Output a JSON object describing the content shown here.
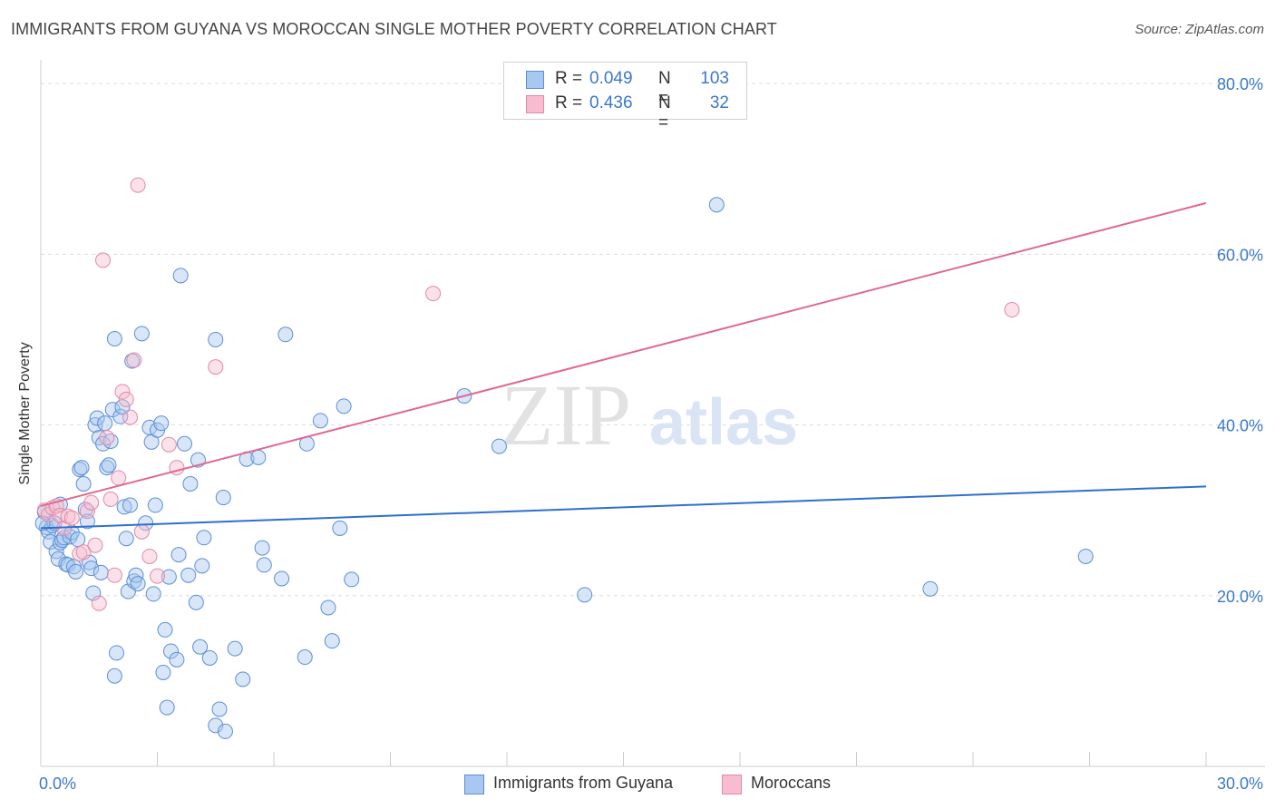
{
  "title": "IMMIGRANTS FROM GUYANA VS MOROCCAN SINGLE MOTHER POVERTY CORRELATION CHART",
  "source": "Source: ZipAtlas.com",
  "watermark": {
    "zip": "ZIP",
    "atlas": "atlas"
  },
  "colors": {
    "blue_fill": "#a8c8f0",
    "blue_stroke": "#5b8fd6",
    "blue_line": "#2f6fcf",
    "pink_fill": "#f7bcd0",
    "pink_stroke": "#e08aa6",
    "pink_line": "#e06890",
    "axis_text": "#3a78c9",
    "grid": "#dcdcdc"
  },
  "legend_top": {
    "rows": [
      {
        "r_label": "R =",
        "r_value": "0.049",
        "n_label": "N =",
        "n_value": "103",
        "color": "blue"
      },
      {
        "r_label": "R =",
        "r_value": "0.436",
        "n_label": "N =",
        "n_value": "32",
        "color": "pink"
      }
    ]
  },
  "legend_bottom": {
    "items": [
      {
        "label": "Immigrants from Guyana",
        "color": "blue"
      },
      {
        "label": "Moroccans",
        "color": "pink"
      }
    ]
  },
  "chart_data": {
    "type": "scatter",
    "title": "IMMIGRANTS FROM GUYANA VS MOROCCAN SINGLE MOTHER POVERTY CORRELATION CHART",
    "xlabel": "",
    "ylabel": "Single Mother Poverty",
    "xlim": [
      0,
      30
    ],
    "ylim": [
      0,
      80
    ],
    "x_ticks": [
      {
        "value": 0,
        "label": "0.0%"
      },
      {
        "value": 30,
        "label": "30.0%"
      }
    ],
    "y_ticks": [
      {
        "value": 20,
        "label": "20.0%"
      },
      {
        "value": 40,
        "label": "40.0%"
      },
      {
        "value": 60,
        "label": "60.0%"
      },
      {
        "value": 80,
        "label": "80.0%"
      }
    ],
    "grid": true,
    "series": [
      {
        "name": "Immigrants from Guyana",
        "color": "blue",
        "r": 0.049,
        "n": 103,
        "trend": [
          [
            0,
            27.9
          ],
          [
            30,
            32.8
          ]
        ],
        "points": [
          [
            0.1,
            29.8
          ],
          [
            0.15,
            28.0
          ],
          [
            0.2,
            27.5
          ],
          [
            0.25,
            26.3
          ],
          [
            0.3,
            28.2
          ],
          [
            0.35,
            28.5
          ],
          [
            0.4,
            25.2
          ],
          [
            0.45,
            24.3
          ],
          [
            0.5,
            30.7
          ],
          [
            0.5,
            26.2
          ],
          [
            0.55,
            26.5
          ],
          [
            0.6,
            26.8
          ],
          [
            0.65,
            23.7
          ],
          [
            0.7,
            23.6
          ],
          [
            0.75,
            26.9
          ],
          [
            0.8,
            27.4
          ],
          [
            0.85,
            23.4
          ],
          [
            0.9,
            22.8
          ],
          [
            0.95,
            26.6
          ],
          [
            1.0,
            34.8
          ],
          [
            1.05,
            35.0
          ],
          [
            1.1,
            33.1
          ],
          [
            1.15,
            30.1
          ],
          [
            1.2,
            28.7
          ],
          [
            1.25,
            23.9
          ],
          [
            1.3,
            23.2
          ],
          [
            1.35,
            20.3
          ],
          [
            1.4,
            40.0
          ],
          [
            1.45,
            40.8
          ],
          [
            1.5,
            38.5
          ],
          [
            1.55,
            22.7
          ],
          [
            1.6,
            37.8
          ],
          [
            1.65,
            40.2
          ],
          [
            1.7,
            35.0
          ],
          [
            1.75,
            35.3
          ],
          [
            1.8,
            38.1
          ],
          [
            1.85,
            41.8
          ],
          [
            1.9,
            50.1
          ],
          [
            1.95,
            13.3
          ],
          [
            1.9,
            10.6
          ],
          [
            2.05,
            41.0
          ],
          [
            2.1,
            42.1
          ],
          [
            2.15,
            30.4
          ],
          [
            2.2,
            26.7
          ],
          [
            2.25,
            20.5
          ],
          [
            2.3,
            30.6
          ],
          [
            2.35,
            47.5
          ],
          [
            2.4,
            21.7
          ],
          [
            2.45,
            22.4
          ],
          [
            2.5,
            21.4
          ],
          [
            2.6,
            50.7
          ],
          [
            2.7,
            28.5
          ],
          [
            2.8,
            39.7
          ],
          [
            2.85,
            38.0
          ],
          [
            2.9,
            20.2
          ],
          [
            2.95,
            30.6
          ],
          [
            3.0,
            39.4
          ],
          [
            3.1,
            40.2
          ],
          [
            3.15,
            11.0
          ],
          [
            3.2,
            16.0
          ],
          [
            3.25,
            6.9
          ],
          [
            3.3,
            22.2
          ],
          [
            3.35,
            13.5
          ],
          [
            3.5,
            12.5
          ],
          [
            3.55,
            24.8
          ],
          [
            3.6,
            57.5
          ],
          [
            3.7,
            37.8
          ],
          [
            3.8,
            22.4
          ],
          [
            3.85,
            33.1
          ],
          [
            4.0,
            19.2
          ],
          [
            4.05,
            35.9
          ],
          [
            4.1,
            14.0
          ],
          [
            4.15,
            23.5
          ],
          [
            4.2,
            26.8
          ],
          [
            4.35,
            12.7
          ],
          [
            4.5,
            4.8
          ],
          [
            4.5,
            50.0
          ],
          [
            4.6,
            6.7
          ],
          [
            4.7,
            31.5
          ],
          [
            4.75,
            4.1
          ],
          [
            5.0,
            13.8
          ],
          [
            5.2,
            10.2
          ],
          [
            5.3,
            36.0
          ],
          [
            5.6,
            36.2
          ],
          [
            5.7,
            25.6
          ],
          [
            5.75,
            23.6
          ],
          [
            6.2,
            22.0
          ],
          [
            6.3,
            50.6
          ],
          [
            6.8,
            12.8
          ],
          [
            6.85,
            37.8
          ],
          [
            7.2,
            40.5
          ],
          [
            7.4,
            18.6
          ],
          [
            7.5,
            14.7
          ],
          [
            7.7,
            27.9
          ],
          [
            7.8,
            42.2
          ],
          [
            8.0,
            21.9
          ],
          [
            10.9,
            43.4
          ],
          [
            11.8,
            37.5
          ],
          [
            14.0,
            20.1
          ],
          [
            17.4,
            65.8
          ],
          [
            22.9,
            20.8
          ],
          [
            26.9,
            24.6
          ],
          [
            0.05,
            28.5
          ]
        ]
      },
      {
        "name": "Moroccans",
        "color": "pink",
        "r": 0.436,
        "n": 32,
        "trend": [
          [
            0,
            30.5
          ],
          [
            30,
            66.0
          ]
        ],
        "points": [
          [
            0.1,
            30.0
          ],
          [
            0.2,
            29.5
          ],
          [
            0.3,
            30.3
          ],
          [
            0.4,
            30.5
          ],
          [
            0.5,
            29.4
          ],
          [
            0.6,
            27.9
          ],
          [
            0.7,
            29.3
          ],
          [
            0.8,
            29.1
          ],
          [
            1.0,
            24.9
          ],
          [
            1.1,
            25.1
          ],
          [
            1.2,
            29.9
          ],
          [
            1.3,
            30.9
          ],
          [
            1.4,
            25.9
          ],
          [
            1.5,
            19.1
          ],
          [
            1.6,
            59.3
          ],
          [
            1.7,
            38.5
          ],
          [
            1.8,
            31.3
          ],
          [
            1.9,
            22.4
          ],
          [
            2.0,
            33.8
          ],
          [
            2.1,
            43.9
          ],
          [
            2.2,
            43.0
          ],
          [
            2.3,
            40.9
          ],
          [
            2.4,
            47.6
          ],
          [
            2.5,
            68.1
          ],
          [
            2.6,
            27.5
          ],
          [
            2.8,
            24.6
          ],
          [
            3.0,
            22.3
          ],
          [
            3.3,
            37.7
          ],
          [
            3.5,
            35.0
          ],
          [
            4.5,
            46.8
          ],
          [
            10.1,
            55.4
          ],
          [
            25.0,
            53.5
          ]
        ]
      }
    ]
  }
}
